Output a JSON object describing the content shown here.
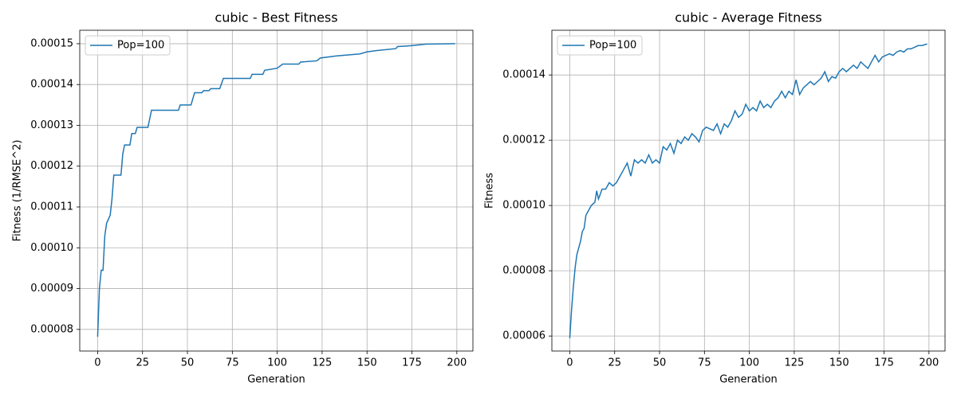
{
  "chart_data": [
    {
      "type": "line",
      "title": "cubic - Best Fitness",
      "xlabel": "Generation",
      "ylabel": "Fitness (1/RMSE^2)",
      "x": [
        0,
        1,
        2,
        3,
        4,
        5,
        6,
        7,
        8,
        9,
        13,
        14,
        15,
        18,
        19,
        21,
        22,
        28,
        30,
        45,
        46,
        52,
        54,
        58,
        59,
        62,
        63,
        68,
        70,
        85,
        86,
        92,
        93,
        100,
        103,
        112,
        113,
        122,
        124,
        133,
        146,
        150,
        155,
        166,
        167,
        174,
        183,
        199
      ],
      "series": [
        {
          "name": "Pop=100",
          "color": "#1f77b4",
          "values": [
            7.82e-05,
            9e-05,
            9.45e-05,
            9.45e-05,
            0.000103,
            0.000106,
            0.000107,
            0.000108,
            0.000112,
            0.0001178,
            0.0001178,
            0.000123,
            0.0001252,
            0.0001252,
            0.000128,
            0.000128,
            0.0001295,
            0.0001295,
            0.0001337,
            0.0001337,
            0.000135,
            0.000135,
            0.000138,
            0.000138,
            0.0001385,
            0.0001385,
            0.000139,
            0.000139,
            0.0001415,
            0.0001415,
            0.0001425,
            0.0001425,
            0.0001435,
            0.000144,
            0.000145,
            0.000145,
            0.0001455,
            0.0001458,
            0.0001465,
            0.000147,
            0.0001475,
            0.000148,
            0.0001483,
            0.0001488,
            0.0001493,
            0.0001495,
            0.0001499,
            0.00015
          ]
        }
      ],
      "xlim": [
        -9.95,
        208.95
      ],
      "ylim": [
        7.47e-05,
        0.0001533
      ],
      "xticks": [
        0,
        25,
        50,
        75,
        100,
        125,
        150,
        175,
        200
      ],
      "yticks": [
        8e-05,
        9e-05,
        {
          "value": 0.0001,
          "label": "0.00010"
        },
        0.00011,
        0.00012,
        0.00013,
        0.00014,
        0.00015
      ],
      "grid": true,
      "legend": "upper left"
    },
    {
      "type": "line",
      "title": "cubic - Average Fitness",
      "xlabel": "Generation",
      "ylabel": "Fitness",
      "x": [
        0,
        1,
        2,
        3,
        4,
        5,
        6,
        7,
        8,
        9,
        10,
        12,
        14,
        15,
        16,
        18,
        20,
        22,
        24,
        26,
        28,
        30,
        32,
        34,
        36,
        38,
        40,
        42,
        44,
        46,
        48,
        50,
        52,
        54,
        56,
        58,
        60,
        62,
        64,
        66,
        68,
        70,
        72,
        74,
        76,
        78,
        80,
        82,
        84,
        86,
        88,
        90,
        92,
        94,
        96,
        98,
        100,
        102,
        104,
        106,
        108,
        110,
        112,
        114,
        116,
        118,
        120,
        122,
        124,
        126,
        128,
        130,
        132,
        134,
        136,
        138,
        140,
        142,
        144,
        146,
        148,
        150,
        152,
        154,
        156,
        158,
        160,
        162,
        164,
        166,
        168,
        170,
        172,
        174,
        176,
        178,
        180,
        182,
        184,
        186,
        188,
        190,
        192,
        194,
        196,
        199
      ],
      "series": [
        {
          "name": "Pop=100",
          "color": "#1f77b4",
          "values": [
            5.93e-05,
            6.8e-05,
            7.5e-05,
            8.1e-05,
            8.5e-05,
            8.7e-05,
            8.9e-05,
            9.2e-05,
            9.3e-05,
            9.7e-05,
            9.8e-05,
            0.0001,
            0.000101,
            0.0001045,
            0.000102,
            0.000105,
            0.000105,
            0.000107,
            0.000106,
            0.000107,
            0.000109,
            0.000111,
            0.000113,
            0.000109,
            0.000114,
            0.000113,
            0.000114,
            0.000113,
            0.0001155,
            0.000113,
            0.000114,
            0.000113,
            0.000118,
            0.000117,
            0.000119,
            0.000116,
            0.00012,
            0.000119,
            0.000121,
            0.00012,
            0.000122,
            0.000121,
            0.0001195,
            0.000123,
            0.000124,
            0.0001235,
            0.000123,
            0.000125,
            0.000122,
            0.000125,
            0.000124,
            0.000126,
            0.000129,
            0.000127,
            0.000128,
            0.000131,
            0.000129,
            0.00013,
            0.000129,
            0.000132,
            0.00013,
            0.000131,
            0.00013,
            0.000132,
            0.000133,
            0.000135,
            0.000133,
            0.000135,
            0.000134,
            0.0001385,
            0.000134,
            0.000136,
            0.000137,
            0.000138,
            0.000137,
            0.000138,
            0.000139,
            0.000141,
            0.000138,
            0.0001395,
            0.000139,
            0.000141,
            0.000142,
            0.000141,
            0.000142,
            0.000143,
            0.000142,
            0.000144,
            0.000143,
            0.000142,
            0.000144,
            0.000146,
            0.000144,
            0.0001455,
            0.000146,
            0.0001465,
            0.000146,
            0.000147,
            0.0001475,
            0.000147,
            0.000148,
            0.000148,
            0.0001485,
            0.000149,
            0.000149,
            0.0001495
          ]
        }
      ],
      "xlim": [
        -9.95,
        208.95
      ],
      "ylim": [
        5.54e-05,
        0.0001537
      ],
      "xticks": [
        0,
        25,
        50,
        75,
        100,
        125,
        150,
        175,
        200
      ],
      "yticks": [
        6e-05,
        8e-05,
        {
          "value": 0.0001,
          "label": "0.00010"
        },
        0.00012,
        0.00014
      ],
      "grid": true,
      "legend": "upper left"
    }
  ]
}
